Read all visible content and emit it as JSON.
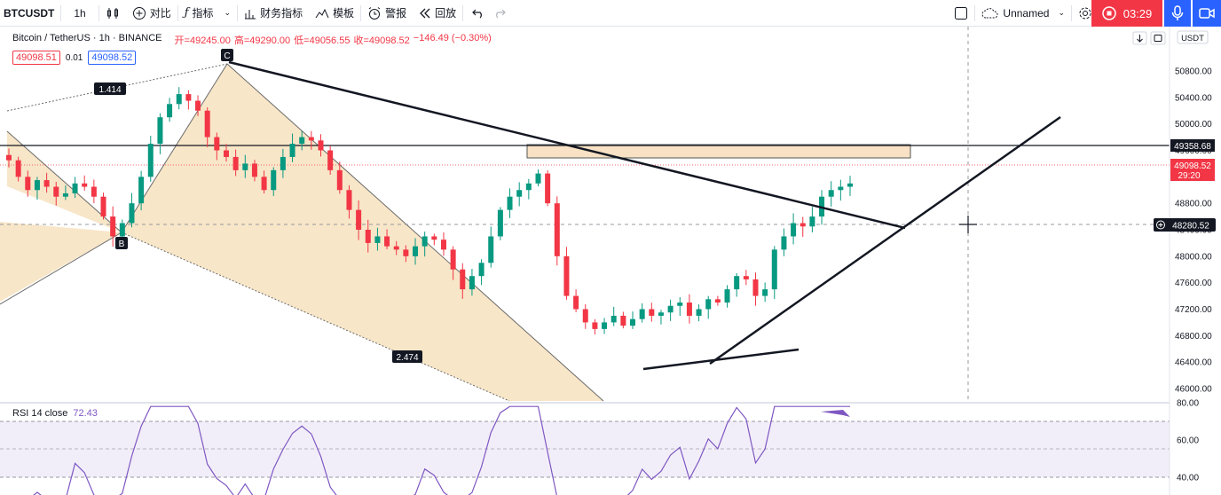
{
  "toolbar": {
    "symbol": "BTCUSDT",
    "interval": "1h",
    "compare": "对比",
    "indicators": "指标",
    "financials": "财务指标",
    "templates": "模板",
    "alerts": "警报",
    "replay": "回放",
    "layout_name": "Unnamed",
    "timer": "03:29"
  },
  "legend": {
    "symbol_desc": "Bitcoin / TetherUS · 1h · BINANCE",
    "open": "开=49245.00",
    "high": "高=49290.00",
    "low": "低=49056.55",
    "close": "收=49098.52",
    "change": "−146.49 (−0.30%)",
    "bid": "49098.51",
    "spread": "0.01",
    "ask": "49098.52"
  },
  "price_axis": {
    "currency": "USDT",
    "ticks": [
      "50800.00",
      "50400.00",
      "50000.00",
      "49600.00",
      "49200.00",
      "48800.00",
      "48400.00",
      "48000.00",
      "47600.00",
      "47200.00",
      "46800.00",
      "46400.00",
      "46000.00"
    ],
    "level_label": "49358.68",
    "last_price": "49098.52",
    "countdown": "29:20",
    "crosshair_price": "48280.52"
  },
  "rsi": {
    "label": "RSI 14 close",
    "value": "72.43",
    "ticks": [
      "80.00",
      "60.00",
      "40.00"
    ]
  },
  "drawings": {
    "xabcd_labels": [
      "1.414",
      "2.474"
    ],
    "point_labels": [
      "C",
      "B"
    ]
  },
  "chart_data": {
    "type": "candlestick",
    "ylim": [
      46000,
      51000
    ],
    "horizontal_level": 49358.68,
    "last_price": 49098.52,
    "close_series_approx": [
      49450,
      49200,
      49000,
      49150,
      49050,
      48900,
      48950,
      49100,
      49050,
      48900,
      48600,
      48300,
      48500,
      48800,
      49200,
      49700,
      50100,
      50300,
      50450,
      50350,
      50200,
      49800,
      49600,
      49500,
      49300,
      49400,
      49200,
      49000,
      49300,
      49500,
      49700,
      49800,
      49750,
      49600,
      49300,
      49000,
      48700,
      48400,
      48200,
      48300,
      48150,
      48100,
      48000,
      48150,
      48300,
      48250,
      48100,
      47800,
      47500,
      47700,
      47900,
      48300,
      48700,
      48900,
      49000,
      49100,
      49250,
      48800,
      48000,
      47400,
      47200,
      47000,
      46900,
      47000,
      47100,
      46950,
      47050,
      47200,
      47100,
      47150,
      47250,
      47300,
      47100,
      47200,
      47350,
      47300,
      47500,
      47700,
      47650,
      47400,
      47500,
      48100,
      48300,
      48500,
      48450,
      48600,
      48900,
      49000,
      49050,
      49100
    ]
  },
  "colors": {
    "up": "#089981",
    "down": "#f23645",
    "rsi_line": "#7e57c2",
    "fib_fill": "#f8e6c8",
    "accent": "#2962ff"
  }
}
